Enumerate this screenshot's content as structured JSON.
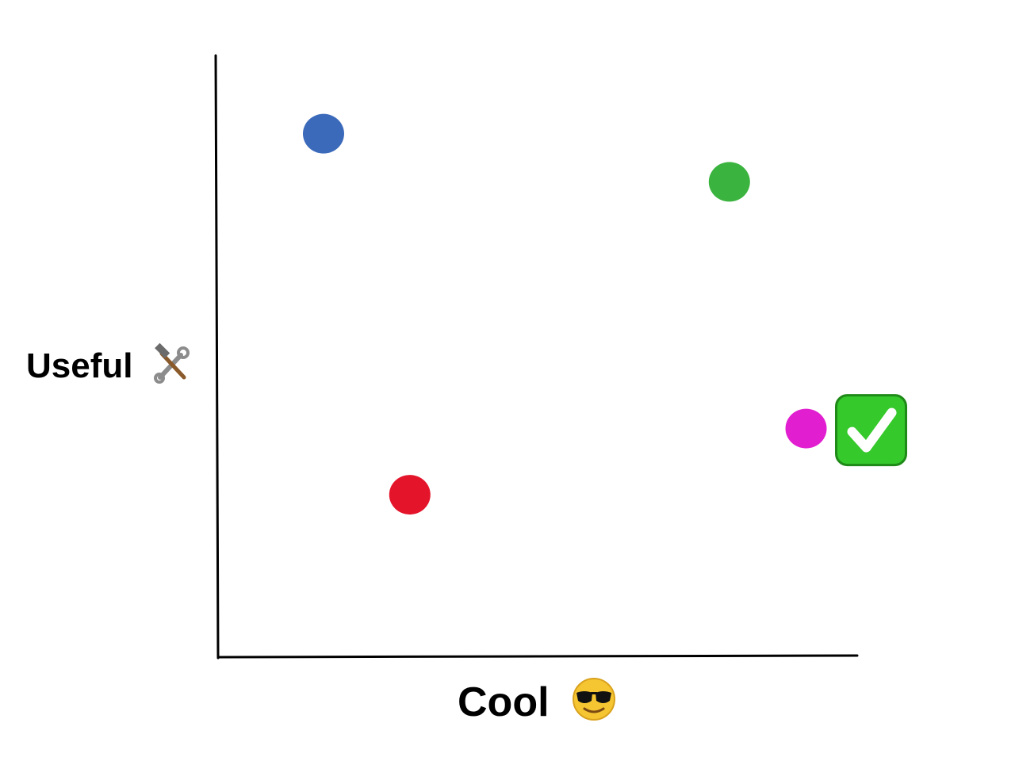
{
  "chart_data": {
    "type": "scatter",
    "title": "",
    "xlabel": "Cool",
    "ylabel": "Useful",
    "xlim": [
      0,
      10
    ],
    "ylim": [
      0,
      10
    ],
    "grid": false,
    "points": [
      {
        "x": 1.65,
        "y": 8.7,
        "color": "#3b6abb"
      },
      {
        "x": 8.0,
        "y": 7.9,
        "color": "#3ab33f"
      },
      {
        "x": 9.2,
        "y": 3.8,
        "color": "#e11fd0",
        "marker": "check-mark-icon"
      },
      {
        "x": 3.0,
        "y": 2.7,
        "color": "#e4142b"
      }
    ],
    "icons": {
      "xlabel_icon": "sunglasses-face-icon",
      "ylabel_icon": "hammer-and-wrench-icon",
      "check_icon": "check-mark-icon"
    },
    "check_color": "#35c92c"
  }
}
